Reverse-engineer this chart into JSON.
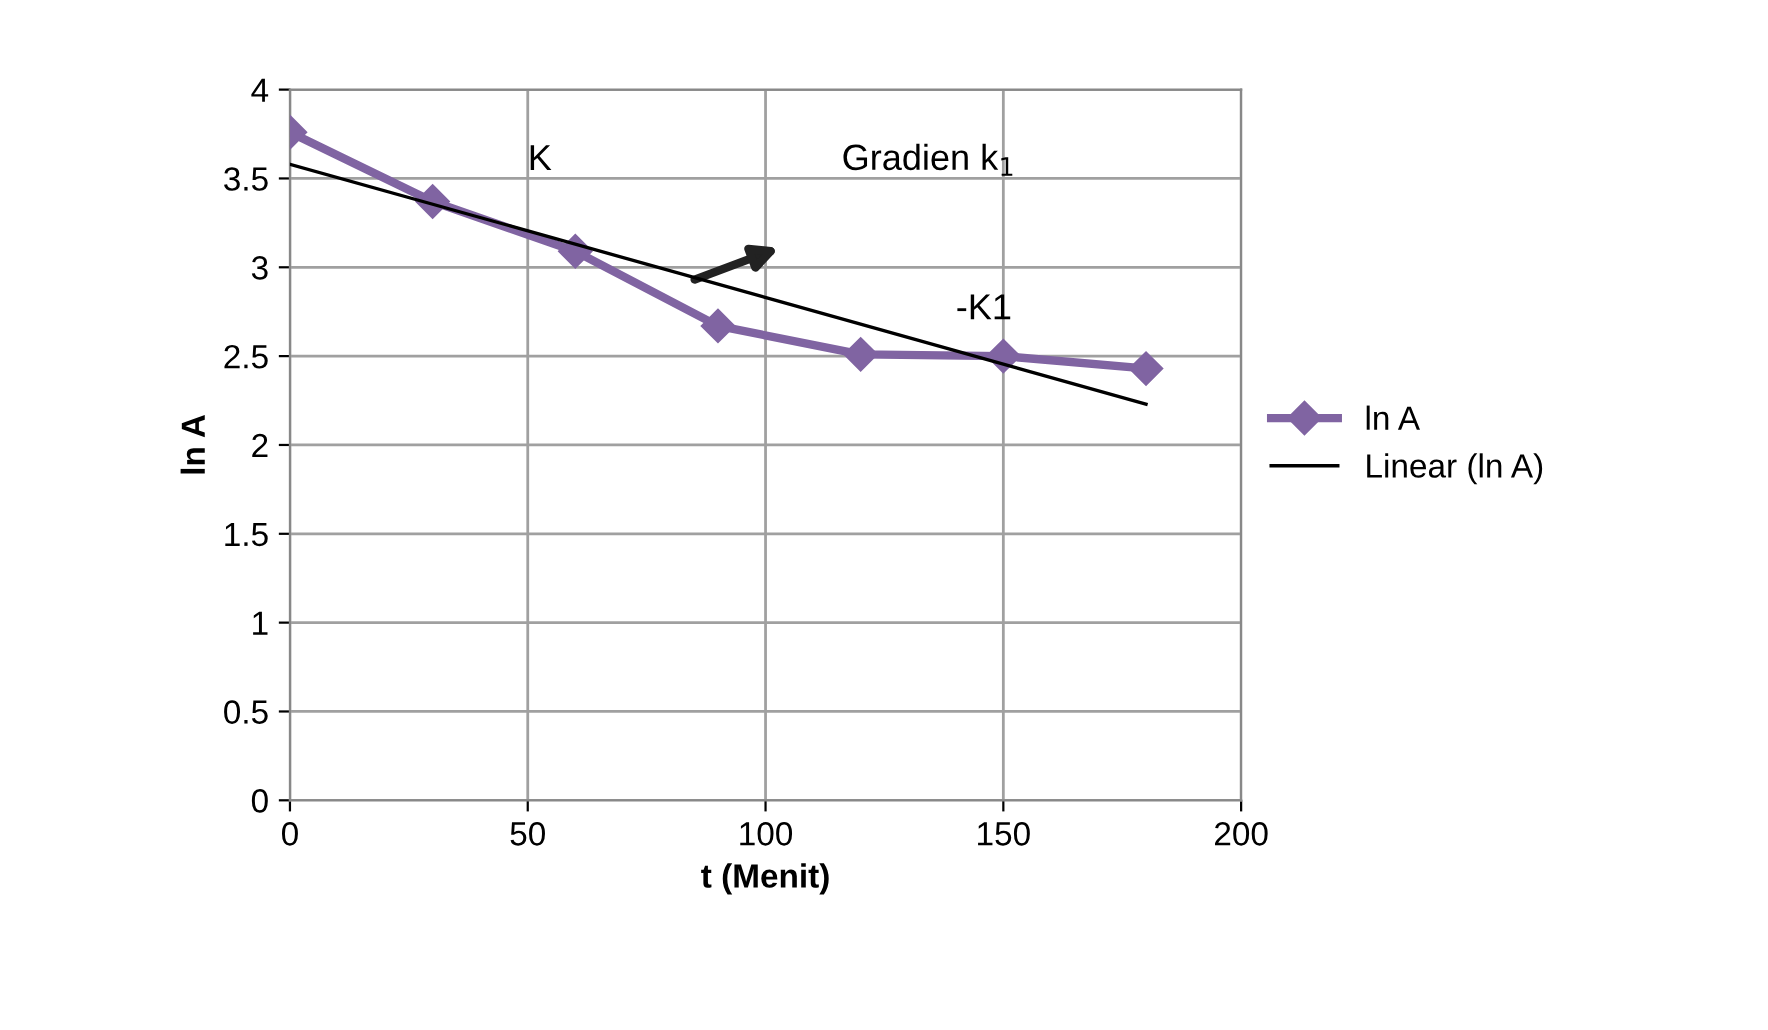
{
  "chart_data": {
    "type": "line",
    "xlabel": "t (Menit)",
    "ylabel": "ln A",
    "series": [
      {
        "name": "ln A",
        "color": "#8064a2",
        "x": [
          0,
          30,
          60,
          90,
          120,
          150,
          180
        ],
        "values": [
          3.76,
          3.37,
          3.09,
          2.67,
          2.51,
          2.5,
          2.43
        ],
        "marker": "diamond"
      },
      {
        "name": "Linear (ln A)",
        "color": "#000000",
        "x": [
          0,
          180
        ],
        "values": [
          3.58,
          2.23
        ],
        "marker": "none"
      }
    ],
    "xlim": [
      0,
      200
    ],
    "xticks": [
      0,
      50,
      100,
      150,
      200
    ],
    "ylim": [
      0,
      4
    ],
    "yticks": [
      0,
      0.5,
      1,
      1.5,
      2,
      2.5,
      3,
      3.5,
      4
    ],
    "annotations": [
      "K",
      "Gradien k$_{1}$",
      "-K1"
    ],
    "grid": true,
    "legend": "right"
  }
}
